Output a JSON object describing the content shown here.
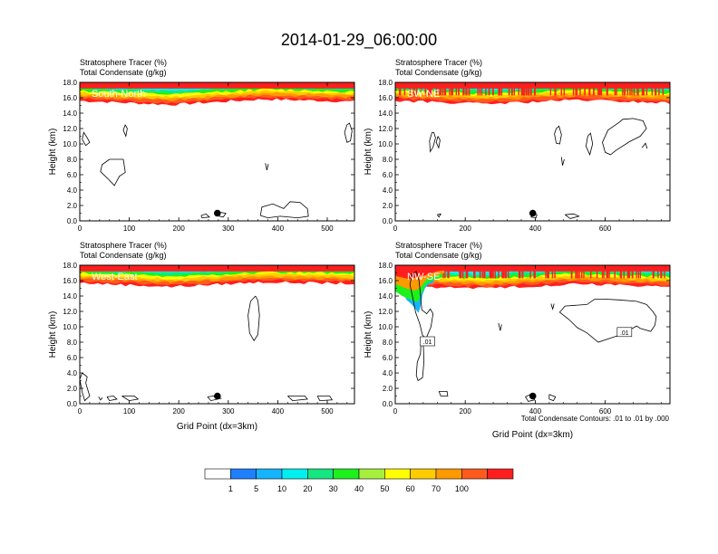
{
  "title": "2014-01-29_06:00:00",
  "colors": {
    "levels": [
      "#ffffff",
      "#1e7fff",
      "#14b4ff",
      "#00f0f0",
      "#14e682",
      "#1ef01e",
      "#a6f03c",
      "#ffff00",
      "#ffcc00",
      "#ff9900",
      "#ff5a1e",
      "#ff1e1e"
    ],
    "contour": "#000000"
  },
  "colorbar": {
    "labels": [
      "1",
      "5",
      "10",
      "20",
      "30",
      "40",
      "50",
      "60",
      "70",
      "100"
    ]
  },
  "footnote": "Total Condensate Contours: .01 to .01 by .000",
  "chart_data": [
    {
      "type": "heatmap",
      "name": "South-North",
      "title_lines": [
        "Stratosphere Tracer   (%)",
        "Total Condensate   (g/kg)"
      ],
      "xlabel": "",
      "ylabel": "Height (km)",
      "xlim": [
        0,
        555
      ],
      "ylim": [
        0,
        18
      ],
      "xticks": [
        0,
        100,
        200,
        300,
        400,
        500
      ],
      "yticks": [
        "0.0",
        "2.0",
        "4.0",
        "6.0",
        "8.0",
        "10.0",
        "12.0",
        "14.0",
        "16.0",
        "18.0"
      ],
      "tracer_top_km": [
        15.6,
        15.1,
        15.8,
        15.5
      ],
      "marker": {
        "x": 278,
        "z": 1.0
      },
      "contour_labels": []
    },
    {
      "type": "heatmap",
      "name": "SW-NE",
      "title_lines": [
        "Stratosphere Tracer   (%)",
        "Total Condensate   (g/kg)"
      ],
      "xlabel": "",
      "ylabel": "Height (km)",
      "xlim": [
        0,
        785
      ],
      "ylim": [
        0,
        18
      ],
      "xticks": [
        0,
        200,
        400,
        600
      ],
      "yticks": [
        "0.0",
        "2.0",
        "4.0",
        "6.0",
        "8.0",
        "10.0",
        "12.0",
        "14.0",
        "16.0",
        "18.0"
      ],
      "tracer_top_km": [
        15.6,
        15.2,
        15.7,
        15.3
      ],
      "marker": {
        "x": 393,
        "z": 1.0
      },
      "contour_labels": []
    },
    {
      "type": "heatmap",
      "name": "West-East",
      "title_lines": [
        "Stratosphere Tracer   (%)",
        "Total Condensate   (g/kg)"
      ],
      "xlabel": "Grid Point (dx=3km)",
      "ylabel": "Height (km)",
      "xlim": [
        0,
        555
      ],
      "ylim": [
        0,
        18
      ],
      "xticks": [
        0,
        100,
        200,
        300,
        400,
        500
      ],
      "yticks": [
        "0.0",
        "2.0",
        "4.0",
        "6.0",
        "8.0",
        "10.0",
        "12.0",
        "14.0",
        "16.0",
        "18.0"
      ],
      "tracer_top_km": [
        15.7,
        15.2,
        15.8,
        15.6
      ],
      "marker": {
        "x": 278,
        "z": 1.0
      },
      "contour_labels": []
    },
    {
      "type": "heatmap",
      "name": "NW-SE",
      "title_lines": [
        "Stratosphere Tracer   (%)",
        "Total Condensate   (g/kg)"
      ],
      "xlabel": "Grid Point (dx=3km)",
      "ylabel": "Height (km)",
      "xlim": [
        0,
        785
      ],
      "ylim": [
        0,
        18
      ],
      "xticks": [
        0,
        200,
        400,
        600
      ],
      "yticks": [
        "0.0",
        "2.0",
        "4.0",
        "6.0",
        "8.0",
        "10.0",
        "12.0",
        "14.0",
        "16.0",
        "18.0"
      ],
      "tracer_top_km": [
        15.3,
        15.0,
        15.6,
        15.2
      ],
      "marker": {
        "x": 393,
        "z": 1.0
      },
      "contour_labels": [
        {
          "text": ".01",
          "x": 92,
          "z": 8.0
        },
        {
          "text": ".01",
          "x": 655,
          "z": 9.2
        }
      ]
    }
  ]
}
